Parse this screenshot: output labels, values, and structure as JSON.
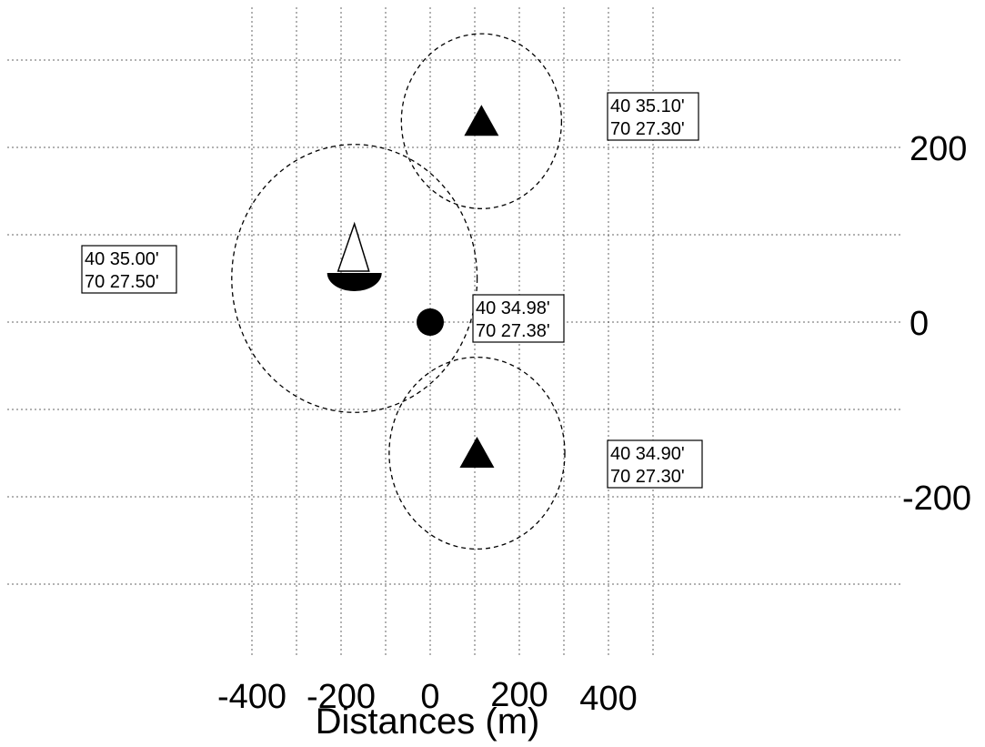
{
  "chart_data": {
    "type": "scatter",
    "xlabel": "Distances  (m)",
    "ylabel": "",
    "xlim": [
      -480,
      520
    ],
    "ylim": [
      -385,
      355
    ],
    "grid": true,
    "x_ticks": [
      -400,
      -200,
      0,
      200,
      400
    ],
    "y_ticks": [
      200,
      0,
      -200
    ],
    "points": [
      {
        "symbol": "circle",
        "x": 0,
        "y": 0,
        "lat": "40 34.98'",
        "lon": "70 27.38'",
        "range_radius": 0
      },
      {
        "symbol": "triangle",
        "x": 115,
        "y": 230,
        "lat": "40 35.10'",
        "lon": "70 27.30'",
        "range_radius": 62
      },
      {
        "symbol": "triangle",
        "x": 105,
        "y": -150,
        "lat": "40 34.90'",
        "lon": "70 27.30'",
        "range_radius": 68
      },
      {
        "symbol": "ship",
        "x": -170,
        "y": 50,
        "lat": "40 35.00'",
        "lon": "70 27.50'",
        "range_radius": 95
      }
    ]
  }
}
